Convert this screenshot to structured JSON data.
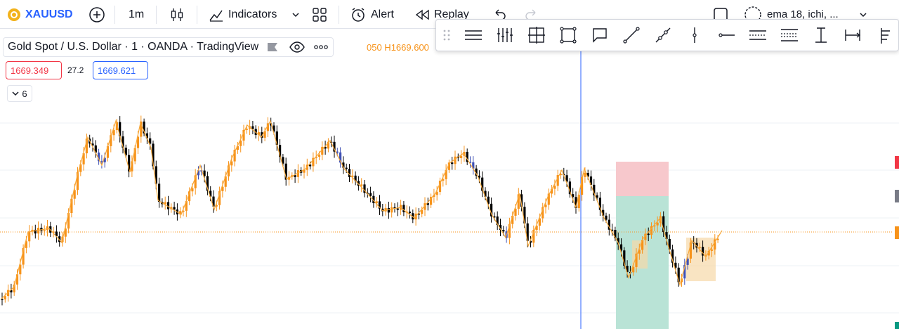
{
  "toolbar": {
    "symbol": "XAUUSD",
    "interval": "1m",
    "indicators_label": "Indicators",
    "alert_label": "Alert",
    "replay_label": "Replay",
    "layout_name": "ema 18, ichi, ..."
  },
  "legend": {
    "title": "Gold Spot / U.S. Dollar · 1 · OANDA · TradingView",
    "ohlc_text": "050  H1669.600"
  },
  "prices": {
    "sell": "1669.349",
    "spread": "27.2",
    "buy": "1669.621"
  },
  "indicators_collapsed": {
    "count": "6"
  },
  "draw_tools": [
    "drag-handle",
    "horizontal-lines",
    "vertical-lines",
    "crosshair-box",
    "rectangle",
    "callout",
    "trend-line",
    "ray",
    "vertical-line",
    "horizontal-ray",
    "parallel-channel",
    "regression-channel",
    "anchored-text",
    "date-range",
    "fib-tools"
  ],
  "colors": {
    "bull": "#f7931a",
    "bear": "#000000",
    "highlight": "#3f51b5",
    "zigzag": "#f7a83a",
    "stop_zone": "#f7c8cc",
    "target_zone": "#b9e3d6",
    "crosshair": "#2962ff",
    "price_line": "#f7931a"
  }
}
